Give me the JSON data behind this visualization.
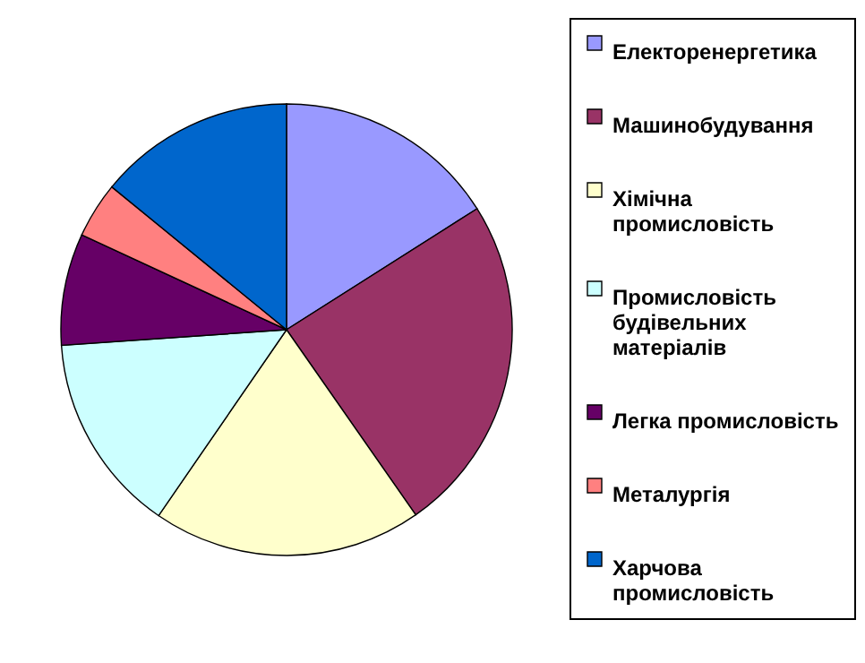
{
  "chart_data": {
    "type": "pie",
    "categories": [
      "Електоренергетика",
      "Машинобудування",
      "Хімічна промисловість",
      "Промисловість будівельних матеріалів",
      "Легка промисловість",
      "Металургія",
      "Харчова промисловість"
    ],
    "values": [
      16,
      24.3,
      19.3,
      14.3,
      8,
      4,
      14.1
    ],
    "colors": [
      "#9999ff",
      "#993366",
      "#ffffcc",
      "#ccffff",
      "#660066",
      "#ff8080",
      "#0066cc"
    ],
    "legend": "right"
  }
}
